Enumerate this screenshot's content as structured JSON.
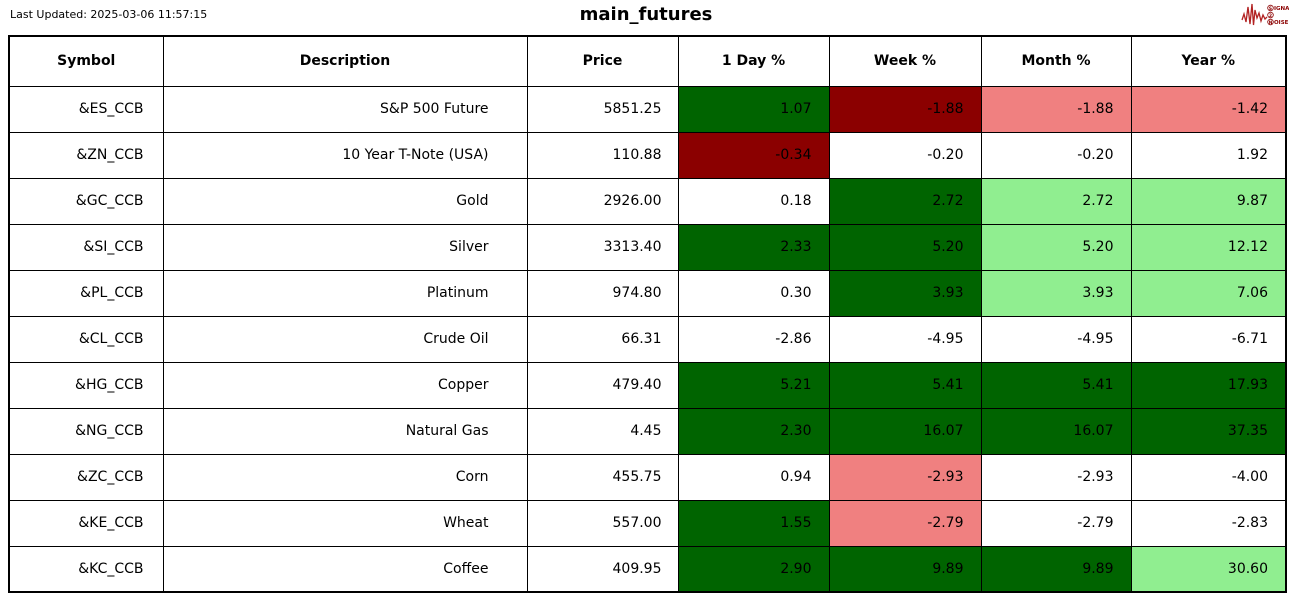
{
  "header": {
    "last_updated": "Last Updated: 2025-03-06 11:57:15",
    "title": "main_futures",
    "logo": {
      "line1": "SIGNAL",
      "line2": "2",
      "line3": "NOISE"
    }
  },
  "colors": {
    "darkgreen": "#006400",
    "darkred": "#8B0000",
    "lightgreen": "#90EE90",
    "lightcoral": "#F08080",
    "white": "#FFFFFF",
    "border": "#000000",
    "logo_red": "#B22222"
  },
  "chart_data": {
    "type": "table",
    "title": "main_futures",
    "columns": [
      "Symbol",
      "Description",
      "Price",
      "1 Day %",
      "Week %",
      "Month %",
      "Year %"
    ],
    "rows": [
      {
        "symbol": "&ES_CCB",
        "description": "S&P 500 Future",
        "price": "5851.25",
        "pcts": [
          {
            "v": "1.07",
            "c": "darkgreen"
          },
          {
            "v": "-1.88",
            "c": "darkred"
          },
          {
            "v": "-1.88",
            "c": "lightcoral"
          },
          {
            "v": "-1.42",
            "c": "lightcoral"
          }
        ]
      },
      {
        "symbol": "&ZN_CCB",
        "description": "10 Year T-Note (USA)",
        "price": "110.88",
        "pcts": [
          {
            "v": "-0.34",
            "c": "darkred"
          },
          {
            "v": "-0.20",
            "c": "white"
          },
          {
            "v": "-0.20",
            "c": "white"
          },
          {
            "v": "1.92",
            "c": "white"
          }
        ]
      },
      {
        "symbol": "&GC_CCB",
        "description": "Gold",
        "price": "2926.00",
        "pcts": [
          {
            "v": "0.18",
            "c": "white"
          },
          {
            "v": "2.72",
            "c": "darkgreen"
          },
          {
            "v": "2.72",
            "c": "lightgreen"
          },
          {
            "v": "9.87",
            "c": "lightgreen"
          }
        ]
      },
      {
        "symbol": "&SI_CCB",
        "description": "Silver",
        "price": "3313.40",
        "pcts": [
          {
            "v": "2.33",
            "c": "darkgreen"
          },
          {
            "v": "5.20",
            "c": "darkgreen"
          },
          {
            "v": "5.20",
            "c": "lightgreen"
          },
          {
            "v": "12.12",
            "c": "lightgreen"
          }
        ]
      },
      {
        "symbol": "&PL_CCB",
        "description": "Platinum",
        "price": "974.80",
        "pcts": [
          {
            "v": "0.30",
            "c": "white"
          },
          {
            "v": "3.93",
            "c": "darkgreen"
          },
          {
            "v": "3.93",
            "c": "lightgreen"
          },
          {
            "v": "7.06",
            "c": "lightgreen"
          }
        ]
      },
      {
        "symbol": "&CL_CCB",
        "description": "Crude Oil",
        "price": "66.31",
        "pcts": [
          {
            "v": "-2.86",
            "c": "white"
          },
          {
            "v": "-4.95",
            "c": "white"
          },
          {
            "v": "-4.95",
            "c": "white"
          },
          {
            "v": "-6.71",
            "c": "white"
          }
        ]
      },
      {
        "symbol": "&HG_CCB",
        "description": "Copper",
        "price": "479.40",
        "pcts": [
          {
            "v": "5.21",
            "c": "darkgreen"
          },
          {
            "v": "5.41",
            "c": "darkgreen"
          },
          {
            "v": "5.41",
            "c": "darkgreen"
          },
          {
            "v": "17.93",
            "c": "darkgreen"
          }
        ]
      },
      {
        "symbol": "&NG_CCB",
        "description": "Natural Gas",
        "price": "4.45",
        "pcts": [
          {
            "v": "2.30",
            "c": "darkgreen"
          },
          {
            "v": "16.07",
            "c": "darkgreen"
          },
          {
            "v": "16.07",
            "c": "darkgreen"
          },
          {
            "v": "37.35",
            "c": "darkgreen"
          }
        ]
      },
      {
        "symbol": "&ZC_CCB",
        "description": "Corn",
        "price": "455.75",
        "pcts": [
          {
            "v": "0.94",
            "c": "white"
          },
          {
            "v": "-2.93",
            "c": "lightcoral"
          },
          {
            "v": "-2.93",
            "c": "white"
          },
          {
            "v": "-4.00",
            "c": "white"
          }
        ]
      },
      {
        "symbol": "&KE_CCB",
        "description": "Wheat",
        "price": "557.00",
        "pcts": [
          {
            "v": "1.55",
            "c": "darkgreen"
          },
          {
            "v": "-2.79",
            "c": "lightcoral"
          },
          {
            "v": "-2.79",
            "c": "white"
          },
          {
            "v": "-2.83",
            "c": "white"
          }
        ]
      },
      {
        "symbol": "&KC_CCB",
        "description": "Coffee",
        "price": "409.95",
        "pcts": [
          {
            "v": "2.90",
            "c": "darkgreen"
          },
          {
            "v": "9.89",
            "c": "darkgreen"
          },
          {
            "v": "9.89",
            "c": "darkgreen"
          },
          {
            "v": "30.60",
            "c": "lightgreen"
          }
        ]
      }
    ]
  }
}
